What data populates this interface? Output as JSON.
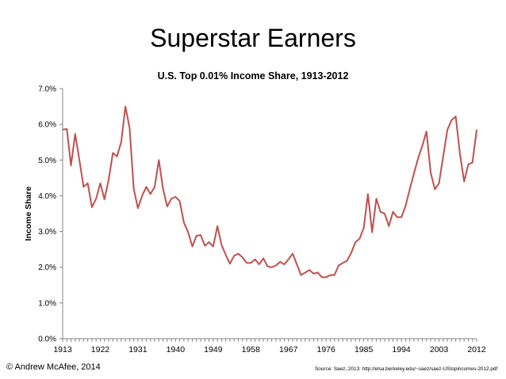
{
  "slide_title": "Superstar Earners",
  "footer": {
    "copyright": "© Andrew McAfee, 2014",
    "source": "Source: Saez, 2013: http://elsa.berkeley.edu/~saez/saez-UStopincomes-2012.pdf"
  },
  "colors": {
    "line": "#c0504d",
    "axis": "#868686",
    "text": "#000000"
  },
  "chart_data": {
    "type": "line",
    "title": "U.S. Top 0.01% Income Share, 1913-2012",
    "ylabel": "Income Share",
    "xlabel": "",
    "xlim": [
      1913,
      2012
    ],
    "ylim": [
      0,
      7
    ],
    "grid": false,
    "x_ticks": [
      "1913",
      "1922",
      "1931",
      "1940",
      "1949",
      "1958",
      "1967",
      "1976",
      "1985",
      "1994",
      "2003",
      "2012"
    ],
    "y_ticks": [
      "0.0%",
      "1.0%",
      "2.0%",
      "3.0%",
      "4.0%",
      "5.0%",
      "6.0%",
      "7.0%"
    ],
    "series": [
      {
        "x": [
          1913,
          1914,
          1915,
          1916,
          1917,
          1918,
          1919,
          1920,
          1921,
          1922,
          1923,
          1924,
          1925,
          1926,
          1927,
          1928,
          1929,
          1930,
          1931,
          1932,
          1933,
          1934,
          1935,
          1936,
          1937,
          1938,
          1939,
          1940,
          1941,
          1942,
          1943,
          1944,
          1945,
          1946,
          1947,
          1948,
          1949,
          1950,
          1951,
          1952,
          1953,
          1954,
          1955,
          1956,
          1957,
          1958,
          1959,
          1960,
          1961,
          1962,
          1963,
          1964,
          1965,
          1966,
          1967,
          1968,
          1969,
          1970,
          1971,
          1972,
          1973,
          1974,
          1975,
          1976,
          1977,
          1978,
          1979,
          1980,
          1981,
          1982,
          1983,
          1984,
          1985,
          1986,
          1987,
          1988,
          1989,
          1990,
          1991,
          1992,
          1993,
          1994,
          1995,
          1996,
          1997,
          1998,
          1999,
          2000,
          2001,
          2002,
          2003,
          2004,
          2005,
          2006,
          2007,
          2008,
          2009,
          2010,
          2011,
          2012
        ],
        "values": [
          5.85,
          5.87,
          4.85,
          5.73,
          5.0,
          4.25,
          4.35,
          3.68,
          3.92,
          4.35,
          3.9,
          4.45,
          5.2,
          5.1,
          5.5,
          6.5,
          5.9,
          4.2,
          3.65,
          4.0,
          4.25,
          4.05,
          4.25,
          5.0,
          4.2,
          3.7,
          3.92,
          3.97,
          3.85,
          3.25,
          2.98,
          2.58,
          2.88,
          2.9,
          2.6,
          2.7,
          2.58,
          3.15,
          2.62,
          2.35,
          2.1,
          2.32,
          2.38,
          2.28,
          2.12,
          2.12,
          2.22,
          2.08,
          2.25,
          2.02,
          2.0,
          2.05,
          2.15,
          2.08,
          2.22,
          2.38,
          2.08,
          1.78,
          1.85,
          1.92,
          1.82,
          1.85,
          1.72,
          1.72,
          1.78,
          1.78,
          2.05,
          2.12,
          2.18,
          2.4,
          2.7,
          2.8,
          3.1,
          4.05,
          2.98,
          3.92,
          3.55,
          3.5,
          3.15,
          3.55,
          3.4,
          3.4,
          3.72,
          4.18,
          4.62,
          5.05,
          5.4,
          5.8,
          4.65,
          4.18,
          4.35,
          5.1,
          5.85,
          6.12,
          6.22,
          5.18,
          4.4,
          4.88,
          4.93,
          5.85
        ]
      }
    ]
  }
}
